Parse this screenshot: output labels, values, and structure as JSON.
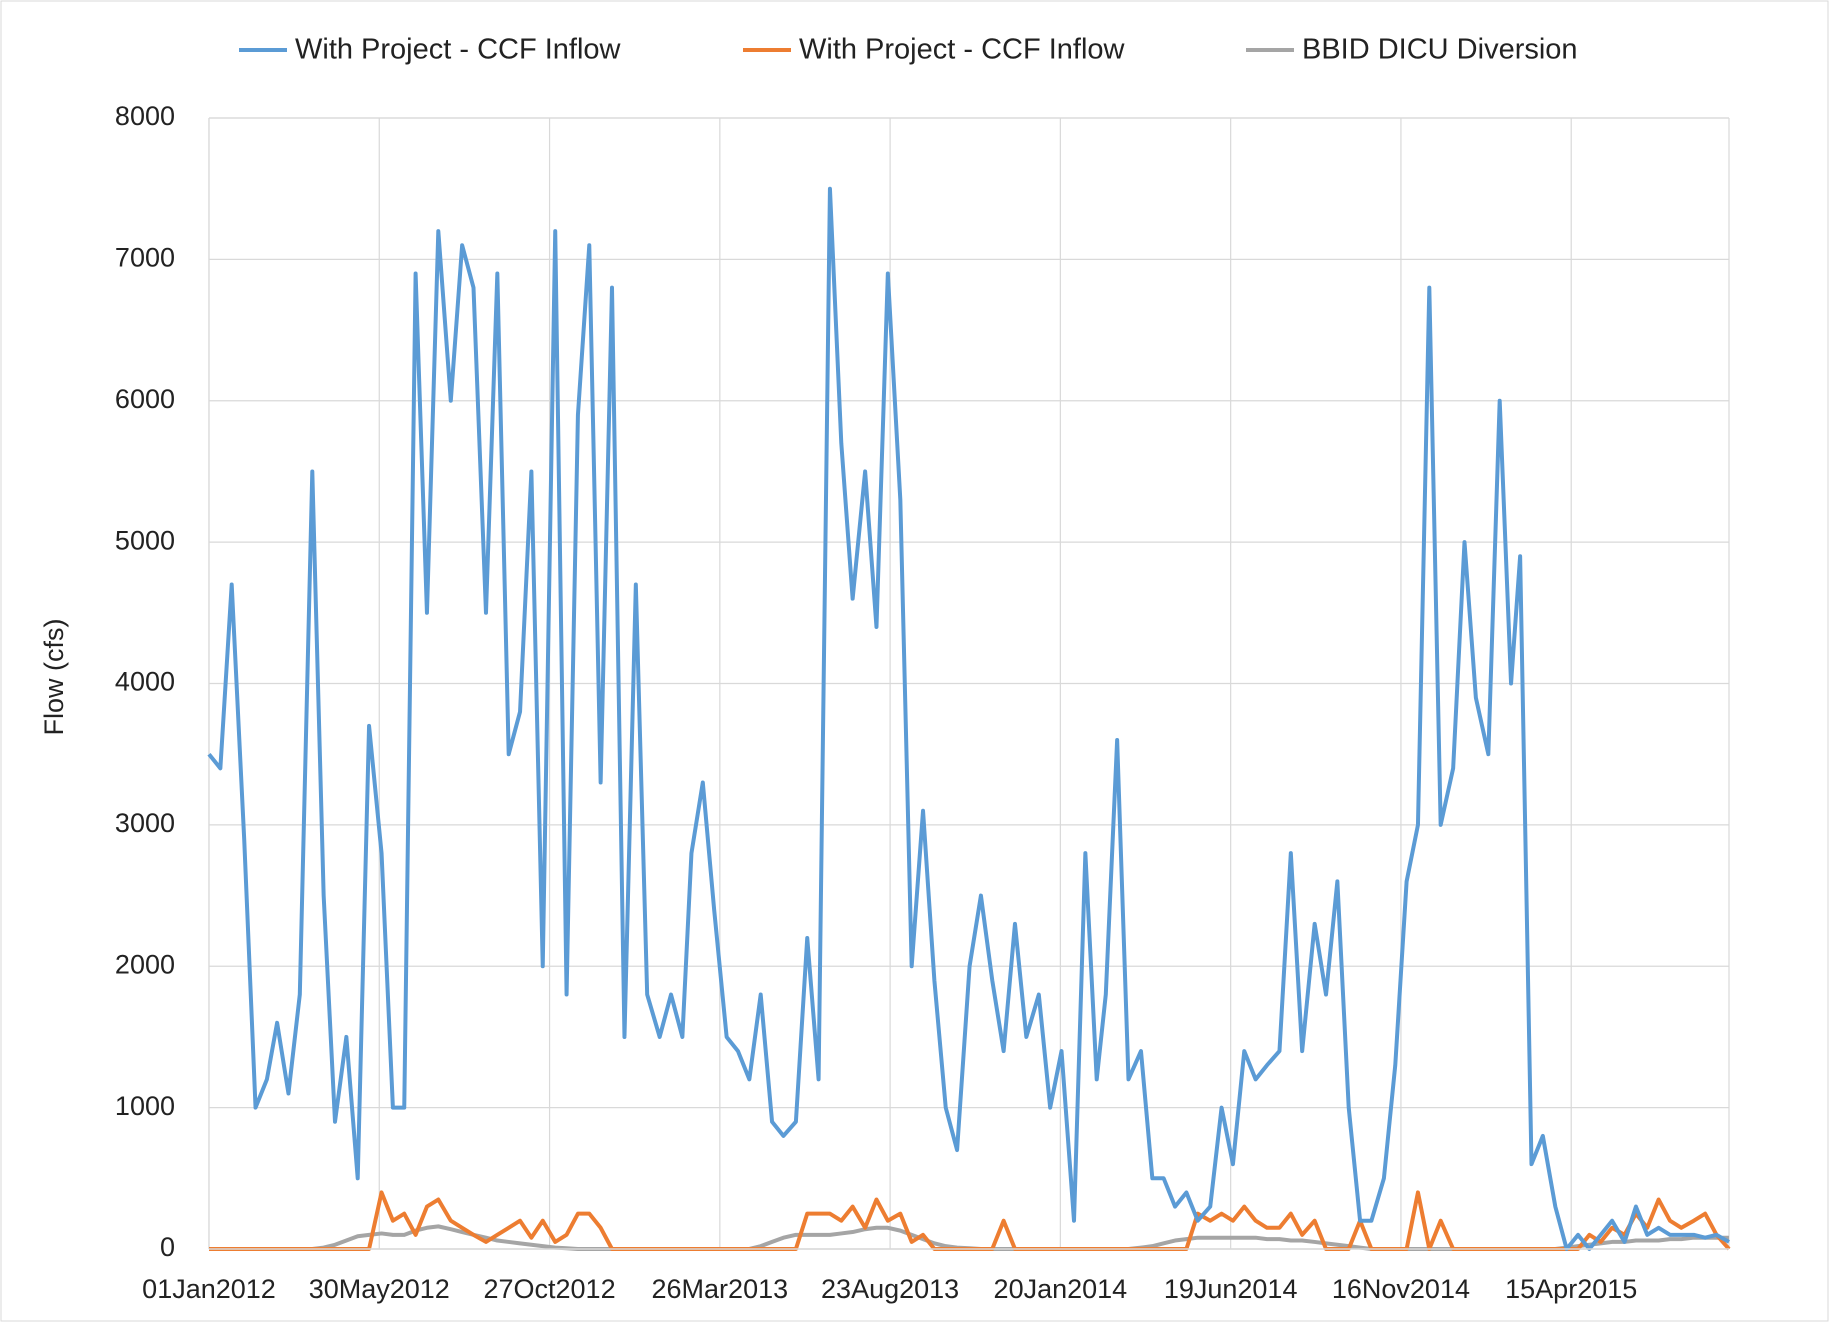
{
  "chart_data": {
    "type": "line",
    "y_label": "Flow (cfs)",
    "legend": "top",
    "grid": true,
    "ylim": [
      0,
      8000
    ],
    "yticks": [
      0,
      1000,
      2000,
      3000,
      4000,
      5000,
      6000,
      7000,
      8000
    ],
    "xlim": [
      "2012-01-01",
      "2015-09-01"
    ],
    "xticks": [
      {
        "value": "2012-01-01",
        "label": "01Jan2012"
      },
      {
        "value": "2012-05-30",
        "label": "30May2012"
      },
      {
        "value": "2012-10-27",
        "label": "27Oct2012"
      },
      {
        "value": "2013-03-26",
        "label": "26Mar2013"
      },
      {
        "value": "2013-08-23",
        "label": "23Aug2013"
      },
      {
        "value": "2014-01-20",
        "label": "20Jan2014"
      },
      {
        "value": "2014-06-19",
        "label": "19Jun2014"
      },
      {
        "value": "2014-11-16",
        "label": "16Nov2014"
      },
      {
        "value": "2015-04-15",
        "label": "15Apr2015"
      }
    ],
    "x": [
      "2012-01-01",
      "2012-01-11",
      "2012-01-21",
      "2012-02-01",
      "2012-02-11",
      "2012-02-21",
      "2012-03-01",
      "2012-03-11",
      "2012-03-21",
      "2012-04-01",
      "2012-04-11",
      "2012-04-21",
      "2012-05-01",
      "2012-05-11",
      "2012-05-21",
      "2012-06-01",
      "2012-06-11",
      "2012-06-21",
      "2012-07-01",
      "2012-07-11",
      "2012-07-21",
      "2012-08-01",
      "2012-08-11",
      "2012-08-21",
      "2012-09-01",
      "2012-09-11",
      "2012-09-21",
      "2012-10-01",
      "2012-10-11",
      "2012-10-21",
      "2012-11-01",
      "2012-11-11",
      "2012-11-21",
      "2012-12-01",
      "2012-12-11",
      "2012-12-21",
      "2013-01-01",
      "2013-01-11",
      "2013-01-21",
      "2013-02-01",
      "2013-02-11",
      "2013-02-21",
      "2013-03-01",
      "2013-03-11",
      "2013-03-21",
      "2013-04-01",
      "2013-04-11",
      "2013-04-21",
      "2013-05-01",
      "2013-05-11",
      "2013-05-21",
      "2013-06-01",
      "2013-06-11",
      "2013-06-21",
      "2013-07-01",
      "2013-07-11",
      "2013-07-21",
      "2013-08-01",
      "2013-08-11",
      "2013-08-21",
      "2013-09-01",
      "2013-09-11",
      "2013-09-21",
      "2013-10-01",
      "2013-10-11",
      "2013-10-21",
      "2013-11-01",
      "2013-11-11",
      "2013-11-21",
      "2013-12-01",
      "2013-12-11",
      "2013-12-21",
      "2014-01-01",
      "2014-01-11",
      "2014-01-21",
      "2014-02-01",
      "2014-02-11",
      "2014-02-21",
      "2014-03-01",
      "2014-03-11",
      "2014-03-21",
      "2014-04-01",
      "2014-04-11",
      "2014-04-21",
      "2014-05-01",
      "2014-05-11",
      "2014-05-21",
      "2014-06-01",
      "2014-06-11",
      "2014-06-21",
      "2014-07-01",
      "2014-07-11",
      "2014-07-21",
      "2014-08-01",
      "2014-08-11",
      "2014-08-21",
      "2014-09-01",
      "2014-09-11",
      "2014-09-21",
      "2014-10-01",
      "2014-10-11",
      "2014-10-21",
      "2014-11-01",
      "2014-11-11",
      "2014-11-21",
      "2014-12-01",
      "2014-12-11",
      "2014-12-21",
      "2015-01-01",
      "2015-01-11",
      "2015-01-21",
      "2015-02-01",
      "2015-02-11",
      "2015-02-21",
      "2015-03-01",
      "2015-03-11",
      "2015-03-21",
      "2015-04-01",
      "2015-04-11",
      "2015-04-21",
      "2015-05-01",
      "2015-05-11",
      "2015-05-21",
      "2015-06-01",
      "2015-06-11",
      "2015-06-21",
      "2015-07-01",
      "2015-07-11",
      "2015-07-21",
      "2015-08-01",
      "2015-08-11",
      "2015-08-21",
      "2015-09-01"
    ],
    "series": [
      {
        "name": "With Project - CCF Inflow",
        "color": "#5b9bd5",
        "values": [
          3500,
          3400,
          4700,
          2900,
          1000,
          1200,
          1600,
          1100,
          1800,
          5500,
          2500,
          900,
          1500,
          500,
          3700,
          2800,
          1000,
          1000,
          6900,
          4500,
          7200,
          6000,
          7100,
          6800,
          4500,
          6900,
          3500,
          3800,
          5500,
          2000,
          7200,
          1800,
          5900,
          7100,
          3300,
          6800,
          1500,
          4700,
          1800,
          1500,
          1800,
          1500,
          2800,
          3300,
          2400,
          1500,
          1400,
          1200,
          1800,
          900,
          800,
          900,
          2200,
          1200,
          7500,
          5700,
          4600,
          5500,
          4400,
          6900,
          5300,
          2000,
          3100,
          1900,
          1000,
          700,
          2000,
          2500,
          1900,
          1400,
          2300,
          1500,
          1800,
          1000,
          1400,
          200,
          2800,
          1200,
          1800,
          3600,
          1200,
          1400,
          500,
          500,
          300,
          400,
          200,
          300,
          1000,
          600,
          1400,
          1200,
          1300,
          1400,
          2800,
          1400,
          2300,
          1800,
          2600,
          1000,
          200,
          200,
          500,
          1300,
          2600,
          3000,
          6800,
          3000,
          3400,
          5000,
          3900,
          3500,
          6000,
          4000,
          4900,
          600,
          800,
          300,
          0,
          100,
          0,
          100,
          200,
          50,
          300,
          100,
          150,
          100,
          100,
          100,
          80,
          100,
          50
        ]
      },
      {
        "name": "With Project - CCF Inflow",
        "color": "#ed7d31",
        "values": [
          0,
          0,
          0,
          0,
          0,
          0,
          0,
          0,
          0,
          0,
          0,
          0,
          0,
          0,
          0,
          400,
          200,
          250,
          100,
          300,
          350,
          200,
          150,
          100,
          50,
          100,
          150,
          200,
          80,
          200,
          50,
          100,
          250,
          250,
          150,
          0,
          0,
          0,
          0,
          0,
          0,
          0,
          0,
          0,
          0,
          0,
          0,
          0,
          0,
          0,
          0,
          0,
          250,
          250,
          250,
          200,
          300,
          150,
          350,
          200,
          250,
          50,
          100,
          0,
          0,
          0,
          0,
          0,
          0,
          200,
          0,
          0,
          0,
          0,
          0,
          0,
          0,
          0,
          0,
          0,
          0,
          0,
          0,
          0,
          0,
          0,
          250,
          200,
          250,
          200,
          300,
          200,
          150,
          150,
          250,
          100,
          200,
          0,
          0,
          0,
          200,
          0,
          0,
          0,
          0,
          400,
          0,
          200,
          0,
          0,
          0,
          0,
          0,
          0,
          0,
          0,
          0,
          0,
          0,
          0,
          100,
          50,
          150,
          100,
          250,
          150,
          350,
          200,
          150,
          200,
          250,
          100,
          0
        ]
      },
      {
        "name": "BBID DICU Diversion",
        "color": "#a5a5a5",
        "values": [
          0,
          0,
          0,
          0,
          0,
          0,
          0,
          0,
          0,
          0,
          10,
          30,
          60,
          90,
          100,
          110,
          100,
          100,
          130,
          150,
          160,
          140,
          120,
          100,
          80,
          60,
          50,
          40,
          30,
          20,
          10,
          5,
          0,
          0,
          0,
          0,
          0,
          0,
          0,
          0,
          0,
          0,
          0,
          0,
          0,
          0,
          0,
          0,
          20,
          50,
          80,
          100,
          100,
          100,
          100,
          110,
          120,
          140,
          150,
          150,
          130,
          100,
          70,
          40,
          20,
          10,
          5,
          0,
          0,
          0,
          0,
          0,
          0,
          0,
          0,
          0,
          0,
          0,
          0,
          0,
          0,
          10,
          20,
          40,
          60,
          70,
          80,
          80,
          80,
          80,
          80,
          80,
          70,
          70,
          60,
          60,
          50,
          40,
          30,
          20,
          10,
          0,
          0,
          0,
          0,
          0,
          0,
          0,
          0,
          0,
          0,
          0,
          0,
          0,
          0,
          0,
          0,
          0,
          10,
          20,
          30,
          40,
          50,
          50,
          60,
          60,
          60,
          70,
          70,
          80,
          80,
          80,
          80
        ]
      }
    ]
  }
}
